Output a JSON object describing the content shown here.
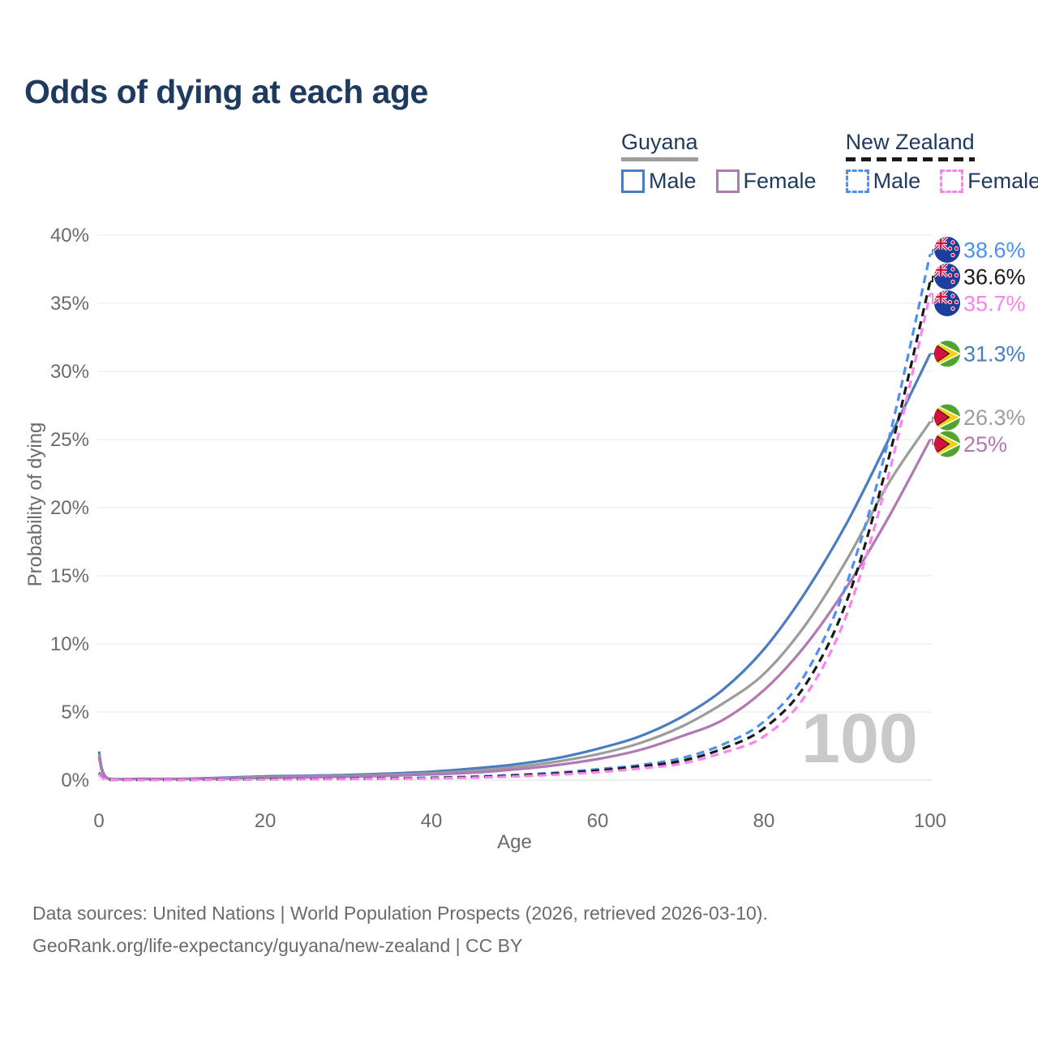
{
  "title": "Odds of dying at each age",
  "legend": {
    "groups": [
      {
        "label": "Guyana",
        "underline_style": "solid",
        "underline_color": "#9e9e9e",
        "items": [
          {
            "label": "Male",
            "color": "#4a7cc2",
            "dashed": false
          },
          {
            "label": "Female",
            "color": "#b278b2",
            "dashed": false
          }
        ]
      },
      {
        "label": "New Zealand",
        "underline_style": "dashed",
        "underline_color": "#1a1a1a",
        "items": [
          {
            "label": "Male",
            "color": "#4d8ff2",
            "dashed": true
          },
          {
            "label": "Female",
            "color": "#fb83ef",
            "dashed": true
          }
        ]
      }
    ]
  },
  "axes": {
    "y_label": "Probability of dying",
    "x_label": "Age"
  },
  "watermark": "100",
  "footer": {
    "line1": "Data sources: United Nations | World Population Prospects (2026, retrieved 2026-03-10).",
    "line2": "GeoRank.org/life-expectancy/guyana/new-zealand | CC BY"
  },
  "chart_data": {
    "type": "line",
    "title": "Odds of dying at each age",
    "xlabel": "Age",
    "ylabel": "Probability of dying",
    "xlim": [
      0,
      100
    ],
    "ylim_pct": [
      0,
      40
    ],
    "x_ticks": [
      0,
      20,
      40,
      60,
      80,
      100
    ],
    "y_ticks_pct": [
      0,
      5,
      10,
      15,
      20,
      25,
      30,
      35,
      40
    ],
    "grid": "horizontal",
    "legend_position": "top-right",
    "ages": [
      0,
      1,
      5,
      10,
      15,
      20,
      25,
      30,
      35,
      40,
      45,
      50,
      55,
      60,
      65,
      70,
      75,
      80,
      85,
      90,
      95,
      100
    ],
    "series": [
      {
        "id": "guyana-male",
        "name": "Guyana Male",
        "country": "Guyana",
        "sex": "Male",
        "flag": "gy",
        "color": "#4a7cc2",
        "dashed": false,
        "end_label": "31.3%",
        "values_pct": [
          2.1,
          0.15,
          0.1,
          0.1,
          0.18,
          0.28,
          0.32,
          0.38,
          0.48,
          0.62,
          0.85,
          1.15,
          1.6,
          2.3,
          3.2,
          4.6,
          6.6,
          9.6,
          13.8,
          18.9,
          25.0,
          31.3
        ]
      },
      {
        "id": "guyana-total",
        "name": "Guyana (both sexes)",
        "country": "Guyana",
        "sex": "Both",
        "flag": "gy",
        "color": "#9c9c9c",
        "dashed": false,
        "end_label": "26.3%",
        "values_pct": [
          1.9,
          0.13,
          0.09,
          0.09,
          0.14,
          0.22,
          0.26,
          0.31,
          0.4,
          0.5,
          0.68,
          0.95,
          1.35,
          1.9,
          2.7,
          3.9,
          5.6,
          7.8,
          11.4,
          16.2,
          21.8,
          26.3
        ]
      },
      {
        "id": "guyana-female",
        "name": "Guyana Female",
        "country": "Guyana",
        "sex": "Female",
        "flag": "gy",
        "color": "#b278b2",
        "dashed": false,
        "end_label": "25%",
        "values_pct": [
          1.7,
          0.12,
          0.08,
          0.08,
          0.11,
          0.16,
          0.2,
          0.25,
          0.32,
          0.42,
          0.55,
          0.78,
          1.1,
          1.55,
          2.2,
          3.2,
          4.4,
          6.6,
          9.9,
          14.2,
          19.3,
          25.0
        ]
      },
      {
        "id": "new-zealand-male",
        "name": "New Zealand Male",
        "country": "New Zealand",
        "sex": "Male",
        "flag": "nz",
        "color": "#4d8ff2",
        "dashed": true,
        "end_label": "38.6%",
        "values_pct": [
          0.55,
          0.05,
          0.02,
          0.02,
          0.05,
          0.09,
          0.1,
          0.12,
          0.14,
          0.18,
          0.26,
          0.38,
          0.55,
          0.8,
          1.1,
          1.6,
          2.6,
          4.3,
          7.8,
          14.5,
          25.0,
          38.6
        ]
      },
      {
        "id": "new-zealand-total",
        "name": "New Zealand (both sexes)",
        "country": "New Zealand",
        "sex": "Both",
        "flag": "nz",
        "color": "#1a1a1a",
        "dashed": true,
        "end_label": "36.6%",
        "values_pct": [
          0.5,
          0.04,
          0.02,
          0.02,
          0.04,
          0.07,
          0.08,
          0.1,
          0.12,
          0.16,
          0.22,
          0.33,
          0.48,
          0.7,
          1.0,
          1.4,
          2.3,
          3.8,
          7.0,
          13.2,
          23.6,
          36.6
        ]
      },
      {
        "id": "new-zealand-female",
        "name": "New Zealand Female",
        "country": "New Zealand",
        "sex": "Female",
        "flag": "nz",
        "color": "#fb83ef",
        "dashed": true,
        "end_label": "35.7%",
        "values_pct": [
          0.45,
          0.04,
          0.01,
          0.01,
          0.03,
          0.05,
          0.06,
          0.08,
          0.1,
          0.13,
          0.18,
          0.27,
          0.4,
          0.58,
          0.85,
          1.2,
          2.0,
          3.2,
          6.2,
          12.2,
          22.4,
          35.7
        ]
      }
    ]
  }
}
